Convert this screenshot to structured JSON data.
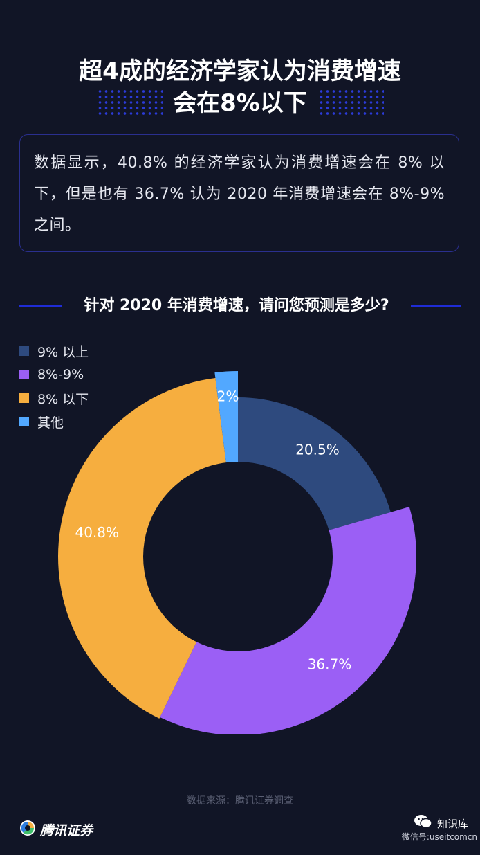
{
  "header": {
    "title_line1": "超4成的经济学家认为消费增速",
    "title_line2": "会在8%以下"
  },
  "description": "数据显示，40.8% 的经济学家认为消费增速会在 8% 以下，但是也有 36.7% 认为 2020 年消费增速会在 8%-9% 之间。",
  "chart_data": {
    "type": "pie",
    "title": "针对 2020 年消费增速，请问您预测是多少?",
    "categories": [
      "9% 以上",
      "8%-9%",
      "8% 以下",
      "其他"
    ],
    "values": [
      20.5,
      36.7,
      40.8,
      2
    ],
    "data_labels": [
      "20.5%",
      "36.7%",
      "40.8%",
      "2%"
    ],
    "colors": [
      "#2e4a7e",
      "#9b5ff5",
      "#f6ae3f",
      "#52a8ff"
    ],
    "donut": true,
    "legend_position": "top-left"
  },
  "footer": {
    "source": "数据来源：腾讯证券调查",
    "brand": "腾讯证券",
    "wechat_label": "知识库",
    "wechat_id": "微信号:useitcomcn"
  },
  "icons": {
    "brand_logo": "tencent-securities-logo-icon",
    "wechat": "wechat-icon"
  }
}
